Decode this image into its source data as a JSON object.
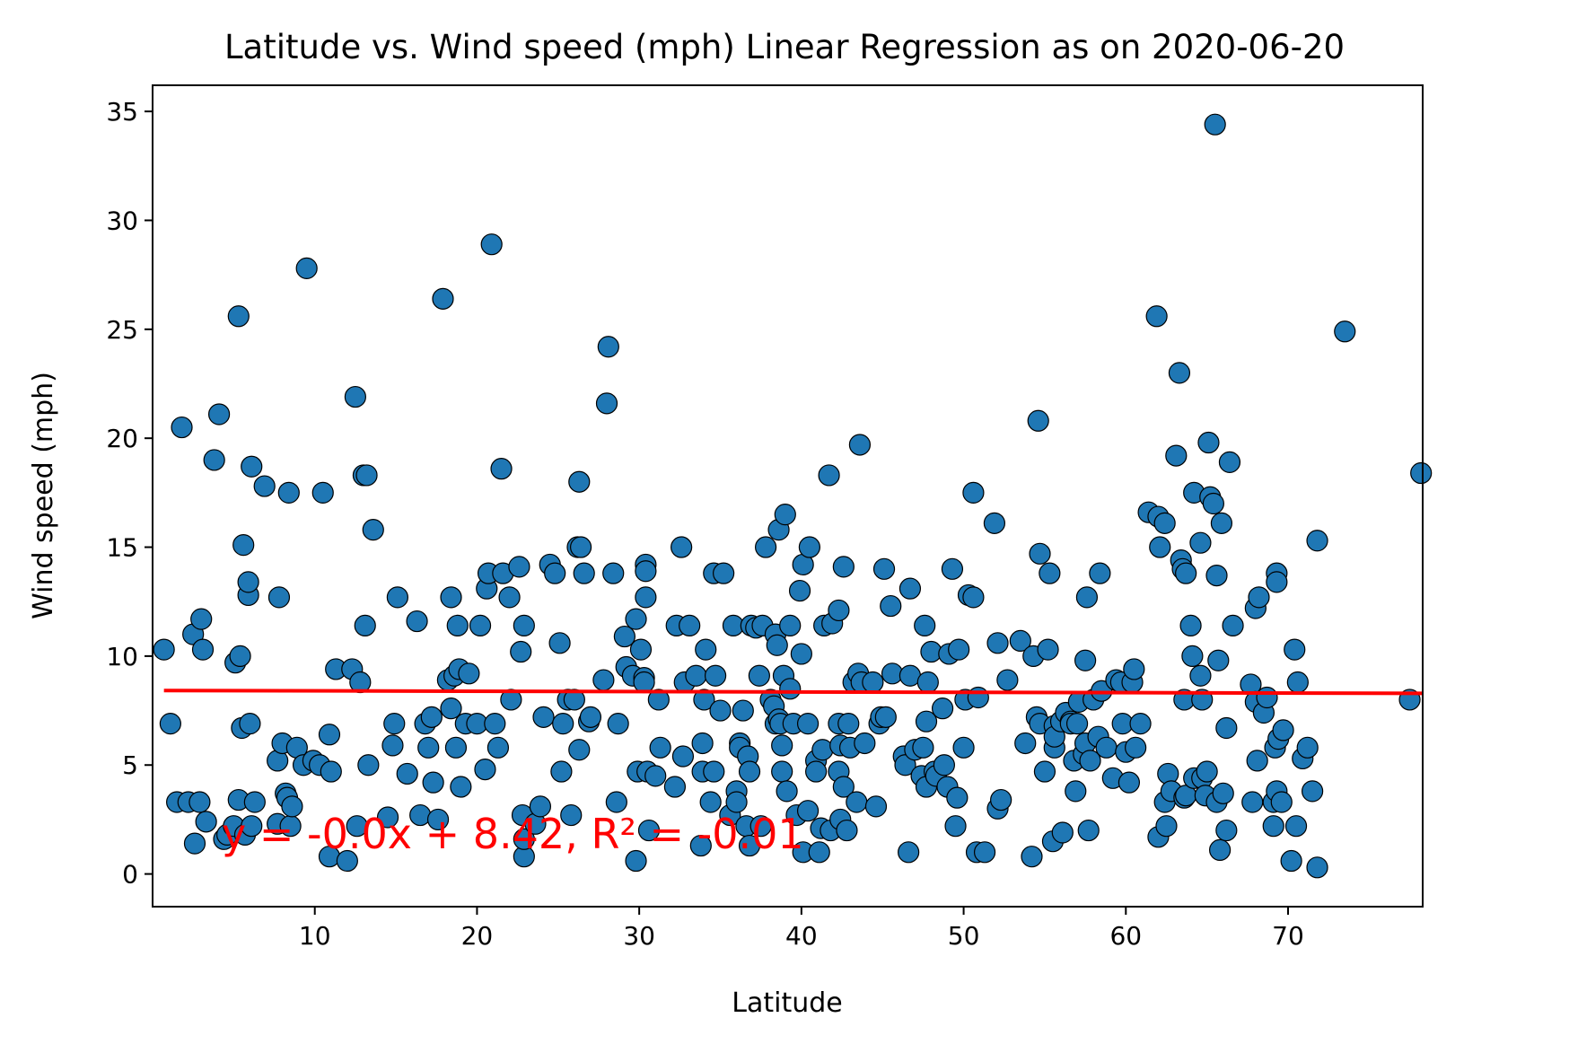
{
  "chart_data": {
    "type": "scatter",
    "title": "Latitude vs. Wind speed (mph) Linear Regression as on 2020-06-20",
    "xlabel": "Latitude",
    "ylabel": "Wind speed (mph)",
    "xlim": [
      0,
      78.3
    ],
    "ylim": [
      -1.5,
      36.2
    ],
    "xticks": [
      10,
      20,
      30,
      40,
      50,
      60,
      70
    ],
    "yticks": [
      0,
      5,
      10,
      15,
      20,
      25,
      30,
      35
    ],
    "grid": false,
    "legend": "none",
    "marker_color": "#1f77b4",
    "regression": {
      "slope": -0.0,
      "intercept": 8.42,
      "x_range": [
        0.7,
        78.3
      ],
      "y_range": [
        8.42,
        8.29
      ],
      "color": "#ff0000",
      "equation_label": "y = -0.0x + 8.42, R² = -0.01"
    },
    "points": [
      [
        0.7,
        10.3
      ],
      [
        1.1,
        6.9
      ],
      [
        1.5,
        3.3
      ],
      [
        1.8,
        20.5
      ],
      [
        2.2,
        3.3
      ],
      [
        2.5,
        11.0
      ],
      [
        2.6,
        1.4
      ],
      [
        2.9,
        3.3
      ],
      [
        3.0,
        11.7
      ],
      [
        3.1,
        10.3
      ],
      [
        3.3,
        2.4
      ],
      [
        3.8,
        19.0
      ],
      [
        4.1,
        21.1
      ],
      [
        4.4,
        1.6
      ],
      [
        4.6,
        1.8
      ],
      [
        5.0,
        2.2
      ],
      [
        5.1,
        9.7
      ],
      [
        5.3,
        3.4
      ],
      [
        5.3,
        25.6
      ],
      [
        5.4,
        10.0
      ],
      [
        5.5,
        6.7
      ],
      [
        5.6,
        15.1
      ],
      [
        5.7,
        1.8
      ],
      [
        5.9,
        12.8
      ],
      [
        5.9,
        13.4
      ],
      [
        6.0,
        6.9
      ],
      [
        6.1,
        2.2
      ],
      [
        6.1,
        18.7
      ],
      [
        6.3,
        3.3
      ],
      [
        6.9,
        17.8
      ],
      [
        7.7,
        2.3
      ],
      [
        7.7,
        5.2
      ],
      [
        7.8,
        12.7
      ],
      [
        8.0,
        6.0
      ],
      [
        8.2,
        3.7
      ],
      [
        8.3,
        3.5
      ],
      [
        8.4,
        17.5
      ],
      [
        8.5,
        2.2
      ],
      [
        8.6,
        3.1
      ],
      [
        8.9,
        5.8
      ],
      [
        9.3,
        5.0
      ],
      [
        9.5,
        27.8
      ],
      [
        9.9,
        5.2
      ],
      [
        10.3,
        5.0
      ],
      [
        10.5,
        17.5
      ],
      [
        10.9,
        0.8
      ],
      [
        10.9,
        6.4
      ],
      [
        11.0,
        4.7
      ],
      [
        11.3,
        9.4
      ],
      [
        12.0,
        0.6
      ],
      [
        12.3,
        9.4
      ],
      [
        12.5,
        21.9
      ],
      [
        12.6,
        2.2
      ],
      [
        12.8,
        8.8
      ],
      [
        13.0,
        18.3
      ],
      [
        13.1,
        11.4
      ],
      [
        13.2,
        18.3
      ],
      [
        13.3,
        5.0
      ],
      [
        13.6,
        15.8
      ],
      [
        14.5,
        2.6
      ],
      [
        14.8,
        5.9
      ],
      [
        14.9,
        6.9
      ],
      [
        15.1,
        12.7
      ],
      [
        15.7,
        4.6
      ],
      [
        16.3,
        11.6
      ],
      [
        16.5,
        2.7
      ],
      [
        16.8,
        6.9
      ],
      [
        17.0,
        5.8
      ],
      [
        17.2,
        7.2
      ],
      [
        17.3,
        4.2
      ],
      [
        17.6,
        2.5
      ],
      [
        17.9,
        26.4
      ],
      [
        18.2,
        8.9
      ],
      [
        18.4,
        7.6
      ],
      [
        18.4,
        12.7
      ],
      [
        18.6,
        9.1
      ],
      [
        18.7,
        5.8
      ],
      [
        18.8,
        11.4
      ],
      [
        18.9,
        9.4
      ],
      [
        19.0,
        4.0
      ],
      [
        19.3,
        6.9
      ],
      [
        19.5,
        9.2
      ],
      [
        20.0,
        6.9
      ],
      [
        20.2,
        11.4
      ],
      [
        20.5,
        4.8
      ],
      [
        20.6,
        13.1
      ],
      [
        20.7,
        13.8
      ],
      [
        20.9,
        28.9
      ],
      [
        21.1,
        6.9
      ],
      [
        21.3,
        5.8
      ],
      [
        21.5,
        18.6
      ],
      [
        21.6,
        13.8
      ],
      [
        22.0,
        12.7
      ],
      [
        22.1,
        8.0
      ],
      [
        22.6,
        14.1
      ],
      [
        22.7,
        10.2
      ],
      [
        22.8,
        2.7
      ],
      [
        22.9,
        11.4
      ],
      [
        22.9,
        0.8
      ],
      [
        22.9,
        1.6
      ],
      [
        23.6,
        2.3
      ],
      [
        23.9,
        3.1
      ],
      [
        24.1,
        7.2
      ],
      [
        24.5,
        14.2
      ],
      [
        24.8,
        13.8
      ],
      [
        25.1,
        10.6
      ],
      [
        25.2,
        4.7
      ],
      [
        25.3,
        6.9
      ],
      [
        25.6,
        8.0
      ],
      [
        25.8,
        2.7
      ],
      [
        26.0,
        8.0
      ],
      [
        26.2,
        15.0
      ],
      [
        26.3,
        5.7
      ],
      [
        26.3,
        18.0
      ],
      [
        26.4,
        15.0
      ],
      [
        26.6,
        13.8
      ],
      [
        26.9,
        7.0
      ],
      [
        27.0,
        7.2
      ],
      [
        27.8,
        8.9
      ],
      [
        28.0,
        21.6
      ],
      [
        28.1,
        24.2
      ],
      [
        28.4,
        13.8
      ],
      [
        28.6,
        3.3
      ],
      [
        28.7,
        6.9
      ],
      [
        29.1,
        10.9
      ],
      [
        29.2,
        9.5
      ],
      [
        29.6,
        9.1
      ],
      [
        29.8,
        11.7
      ],
      [
        29.8,
        0.6
      ],
      [
        29.9,
        4.7
      ],
      [
        30.1,
        10.3
      ],
      [
        30.3,
        9.0
      ],
      [
        30.3,
        8.8
      ],
      [
        30.4,
        14.2
      ],
      [
        30.4,
        13.9
      ],
      [
        30.4,
        12.7
      ],
      [
        30.5,
        4.7
      ],
      [
        30.6,
        2.0
      ],
      [
        31.0,
        4.5
      ],
      [
        31.2,
        8.0
      ],
      [
        31.3,
        5.8
      ],
      [
        32.2,
        4.0
      ],
      [
        32.3,
        11.4
      ],
      [
        32.6,
        15.0
      ],
      [
        32.7,
        5.4
      ],
      [
        32.8,
        8.8
      ],
      [
        33.1,
        11.4
      ],
      [
        33.5,
        9.1
      ],
      [
        33.8,
        1.3
      ],
      [
        33.9,
        4.7
      ],
      [
        33.9,
        6.0
      ],
      [
        34.0,
        8.0
      ],
      [
        34.1,
        10.3
      ],
      [
        34.4,
        3.3
      ],
      [
        34.6,
        13.8
      ],
      [
        34.6,
        4.7
      ],
      [
        34.7,
        9.1
      ],
      [
        35.0,
        7.5
      ],
      [
        35.2,
        13.8
      ],
      [
        35.6,
        2.7
      ],
      [
        35.8,
        11.4
      ],
      [
        36.0,
        3.8
      ],
      [
        36.0,
        3.3
      ],
      [
        36.2,
        6.0
      ],
      [
        36.2,
        5.8
      ],
      [
        36.4,
        7.5
      ],
      [
        36.6,
        2.2
      ],
      [
        36.7,
        5.4
      ],
      [
        36.8,
        1.3
      ],
      [
        36.8,
        4.7
      ],
      [
        36.9,
        11.4
      ],
      [
        37.2,
        11.3
      ],
      [
        37.4,
        9.1
      ],
      [
        37.5,
        2.2
      ],
      [
        37.6,
        11.4
      ],
      [
        37.8,
        15.0
      ],
      [
        38.1,
        8.0
      ],
      [
        38.3,
        7.7
      ],
      [
        38.4,
        6.9
      ],
      [
        38.4,
        11.0
      ],
      [
        38.5,
        10.5
      ],
      [
        38.6,
        7.1
      ],
      [
        38.6,
        15.8
      ],
      [
        38.7,
        6.9
      ],
      [
        38.8,
        4.7
      ],
      [
        38.8,
        5.9
      ],
      [
        38.9,
        9.1
      ],
      [
        39.0,
        16.5
      ],
      [
        39.1,
        3.8
      ],
      [
        39.3,
        11.4
      ],
      [
        39.3,
        8.5
      ],
      [
        39.5,
        6.9
      ],
      [
        39.7,
        2.7
      ],
      [
        39.9,
        13.0
      ],
      [
        40.0,
        10.1
      ],
      [
        40.1,
        1.0
      ],
      [
        40.1,
        14.2
      ],
      [
        40.4,
        6.9
      ],
      [
        40.4,
        2.9
      ],
      [
        40.5,
        15.0
      ],
      [
        40.9,
        5.2
      ],
      [
        40.9,
        4.7
      ],
      [
        41.1,
        1.0
      ],
      [
        41.2,
        2.1
      ],
      [
        41.3,
        5.7
      ],
      [
        41.4,
        11.4
      ],
      [
        41.7,
        18.3
      ],
      [
        41.8,
        2.0
      ],
      [
        41.9,
        11.5
      ],
      [
        42.3,
        12.1
      ],
      [
        42.3,
        6.9
      ],
      [
        42.3,
        4.7
      ],
      [
        42.4,
        5.9
      ],
      [
        42.4,
        2.5
      ],
      [
        42.6,
        14.1
      ],
      [
        42.6,
        4.0
      ],
      [
        42.8,
        2.0
      ],
      [
        42.9,
        6.9
      ],
      [
        43.0,
        5.8
      ],
      [
        43.2,
        8.8
      ],
      [
        43.4,
        3.3
      ],
      [
        43.5,
        9.2
      ],
      [
        43.6,
        19.7
      ],
      [
        43.7,
        8.8
      ],
      [
        43.9,
        6.0
      ],
      [
        44.4,
        8.8
      ],
      [
        44.6,
        3.1
      ],
      [
        44.8,
        6.9
      ],
      [
        44.9,
        7.2
      ],
      [
        45.1,
        14.0
      ],
      [
        45.2,
        7.2
      ],
      [
        45.5,
        12.3
      ],
      [
        45.6,
        9.2
      ],
      [
        46.3,
        5.4
      ],
      [
        46.4,
        5.0
      ],
      [
        46.6,
        1.0
      ],
      [
        46.7,
        13.1
      ],
      [
        46.7,
        9.1
      ],
      [
        47.0,
        5.7
      ],
      [
        47.4,
        4.5
      ],
      [
        47.5,
        5.8
      ],
      [
        47.6,
        11.4
      ],
      [
        47.7,
        7.0
      ],
      [
        47.7,
        4.0
      ],
      [
        47.8,
        8.8
      ],
      [
        48.0,
        10.2
      ],
      [
        48.2,
        4.7
      ],
      [
        48.3,
        4.5
      ],
      [
        48.7,
        7.6
      ],
      [
        48.8,
        5.0
      ],
      [
        49.0,
        4.0
      ],
      [
        49.1,
        10.1
      ],
      [
        49.3,
        14.0
      ],
      [
        49.5,
        2.2
      ],
      [
        49.6,
        3.5
      ],
      [
        49.7,
        10.3
      ],
      [
        50.0,
        5.8
      ],
      [
        50.1,
        8.0
      ],
      [
        50.3,
        12.8
      ],
      [
        50.6,
        17.5
      ],
      [
        50.6,
        12.7
      ],
      [
        50.8,
        1.0
      ],
      [
        50.9,
        8.1
      ],
      [
        51.3,
        1.0
      ],
      [
        51.9,
        16.1
      ],
      [
        52.1,
        10.6
      ],
      [
        52.1,
        3.0
      ],
      [
        52.3,
        3.4
      ],
      [
        52.7,
        8.9
      ],
      [
        53.5,
        10.7
      ],
      [
        53.8,
        6.0
      ],
      [
        54.2,
        0.8
      ],
      [
        54.3,
        10.0
      ],
      [
        54.5,
        7.2
      ],
      [
        54.6,
        20.8
      ],
      [
        54.7,
        14.7
      ],
      [
        54.7,
        6.9
      ],
      [
        55.0,
        4.7
      ],
      [
        55.2,
        10.3
      ],
      [
        55.3,
        13.8
      ],
      [
        55.5,
        1.5
      ],
      [
        55.6,
        6.8
      ],
      [
        55.6,
        5.8
      ],
      [
        55.6,
        6.3
      ],
      [
        56.0,
        7.0
      ],
      [
        56.1,
        1.9
      ],
      [
        56.3,
        7.4
      ],
      [
        56.6,
        7.0
      ],
      [
        56.6,
        6.9
      ],
      [
        56.8,
        5.2
      ],
      [
        56.9,
        3.8
      ],
      [
        57.0,
        6.9
      ],
      [
        57.1,
        7.9
      ],
      [
        57.4,
        5.5
      ],
      [
        57.5,
        6.0
      ],
      [
        57.5,
        9.8
      ],
      [
        57.6,
        12.7
      ],
      [
        57.7,
        2.0
      ],
      [
        57.8,
        5.2
      ],
      [
        58.0,
        8.0
      ],
      [
        58.3,
        6.3
      ],
      [
        58.4,
        13.8
      ],
      [
        58.5,
        8.4
      ],
      [
        58.8,
        5.8
      ],
      [
        59.2,
        4.4
      ],
      [
        59.4,
        8.9
      ],
      [
        59.7,
        8.8
      ],
      [
        59.8,
        6.9
      ],
      [
        60.0,
        5.6
      ],
      [
        60.2,
        4.2
      ],
      [
        60.4,
        8.8
      ],
      [
        60.5,
        9.4
      ],
      [
        60.6,
        5.8
      ],
      [
        60.9,
        6.9
      ],
      [
        61.4,
        16.6
      ],
      [
        61.9,
        25.6
      ],
      [
        62.0,
        16.4
      ],
      [
        62.0,
        1.7
      ],
      [
        62.1,
        15.0
      ],
      [
        62.4,
        16.1
      ],
      [
        62.4,
        3.3
      ],
      [
        62.5,
        2.2
      ],
      [
        62.6,
        4.6
      ],
      [
        62.8,
        3.8
      ],
      [
        63.1,
        19.2
      ],
      [
        63.3,
        23.0
      ],
      [
        63.4,
        14.4
      ],
      [
        63.5,
        14.0
      ],
      [
        63.6,
        3.5
      ],
      [
        63.6,
        8.0
      ],
      [
        63.7,
        13.8
      ],
      [
        63.7,
        3.6
      ],
      [
        64.0,
        11.4
      ],
      [
        64.1,
        10.0
      ],
      [
        64.2,
        4.4
      ],
      [
        64.2,
        17.5
      ],
      [
        64.6,
        15.2
      ],
      [
        64.6,
        9.1
      ],
      [
        64.7,
        4.4
      ],
      [
        64.7,
        8.0
      ],
      [
        64.9,
        3.6
      ],
      [
        65.0,
        4.7
      ],
      [
        65.1,
        19.8
      ],
      [
        65.2,
        17.3
      ],
      [
        65.4,
        17.0
      ],
      [
        65.5,
        34.4
      ],
      [
        65.6,
        13.7
      ],
      [
        65.6,
        3.3
      ],
      [
        65.7,
        9.8
      ],
      [
        65.8,
        1.1
      ],
      [
        65.9,
        16.1
      ],
      [
        66.0,
        3.7
      ],
      [
        66.2,
        2.0
      ],
      [
        66.2,
        6.7
      ],
      [
        66.4,
        18.9
      ],
      [
        66.6,
        11.4
      ],
      [
        67.7,
        8.7
      ],
      [
        67.8,
        3.3
      ],
      [
        68.0,
        12.2
      ],
      [
        68.0,
        7.9
      ],
      [
        68.1,
        5.2
      ],
      [
        68.2,
        12.7
      ],
      [
        68.5,
        7.4
      ],
      [
        68.7,
        8.1
      ],
      [
        69.1,
        3.3
      ],
      [
        69.1,
        2.2
      ],
      [
        69.2,
        5.8
      ],
      [
        69.3,
        3.8
      ],
      [
        69.3,
        13.8
      ],
      [
        69.3,
        13.4
      ],
      [
        69.4,
        6.2
      ],
      [
        69.6,
        3.3
      ],
      [
        69.7,
        6.6
      ],
      [
        70.2,
        0.6
      ],
      [
        70.4,
        10.3
      ],
      [
        70.5,
        2.2
      ],
      [
        70.6,
        8.8
      ],
      [
        70.9,
        5.3
      ],
      [
        71.2,
        5.8
      ],
      [
        71.5,
        3.8
      ],
      [
        71.8,
        15.3
      ],
      [
        71.8,
        0.3
      ],
      [
        73.5,
        24.9
      ],
      [
        77.5,
        8.0
      ],
      [
        78.2,
        18.4
      ]
    ]
  }
}
